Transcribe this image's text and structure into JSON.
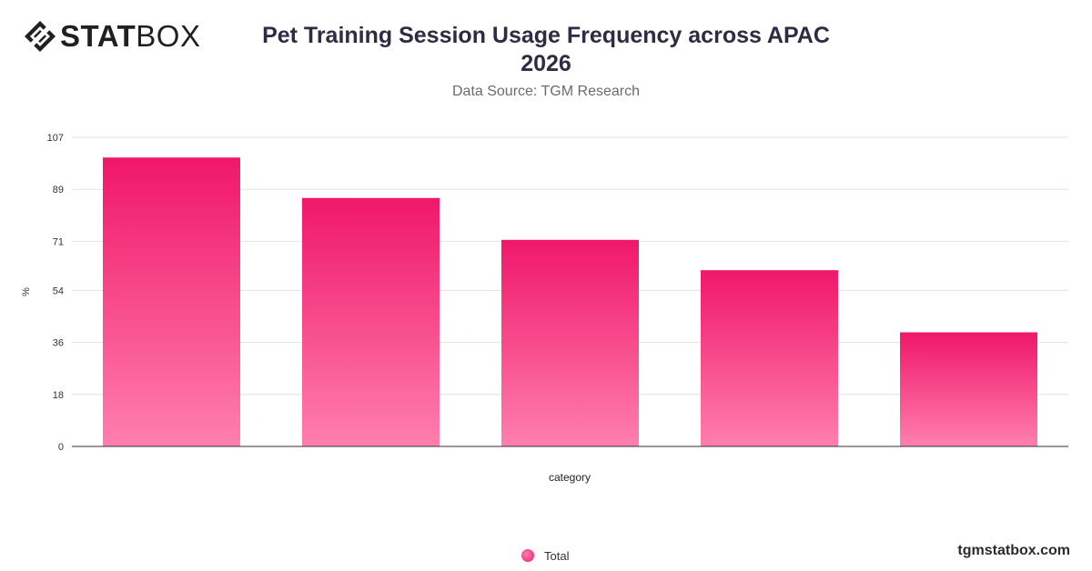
{
  "brand": {
    "name_bold": "STAT",
    "name_light": "BOX",
    "site": "tgmstatbox.com"
  },
  "header": {
    "title_line1": "Pet Training Session Usage Frequency across APAC",
    "title_line2": "2026",
    "source": "Data Source: TGM Research"
  },
  "legend": {
    "label": "Total"
  },
  "colors": {
    "bar_top": "#f0176a",
    "bar_bottom": "#ff7fae",
    "grid": "#e2e2e2",
    "axis": "#333333"
  },
  "chart_data": {
    "type": "bar",
    "title": "Pet Training Session Usage Frequency across APAC 2026",
    "subtitle": "Data Source: TGM Research",
    "xlabel": "category",
    "ylabel": "%",
    "categories": [
      "",
      "",
      "",
      "",
      ""
    ],
    "series": [
      {
        "name": "Total",
        "values": [
          100,
          86,
          71.5,
          61,
          39.5
        ]
      }
    ],
    "yticks": [
      0,
      18,
      36,
      54,
      71,
      89,
      107
    ],
    "ylim": [
      0,
      107
    ],
    "grid": true,
    "legend_position": "bottom-center"
  }
}
